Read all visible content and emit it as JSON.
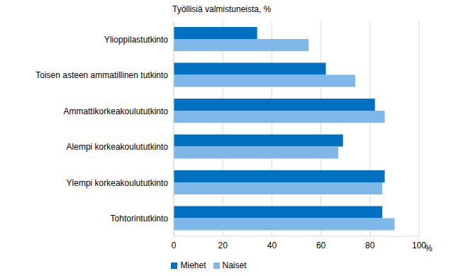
{
  "chart_data": {
    "type": "bar",
    "orientation": "horizontal",
    "title": "Työllisiä valmistuneista, %",
    "xlabel": "%",
    "categories": [
      "Ylioppilastutkinto",
      "Toisen asteen ammatillinen tutkinto",
      "Ammattikorkeakoulututkinto",
      "Alempi korkeakoulututkinto",
      "Ylempi korkeakoulututkinto",
      "Tohtorintutkinto"
    ],
    "series": [
      {
        "name": "Miehet",
        "color": "#0070c0",
        "values": [
          34,
          62,
          82,
          69,
          86,
          85
        ]
      },
      {
        "name": "Naiset",
        "color": "#7fb8e8",
        "values": [
          55,
          74,
          86,
          67,
          85,
          90
        ]
      }
    ],
    "xlim": [
      0,
      100
    ],
    "xticks": [
      0,
      20,
      40,
      60,
      80,
      100
    ],
    "grid": true,
    "legend": "bottom"
  }
}
